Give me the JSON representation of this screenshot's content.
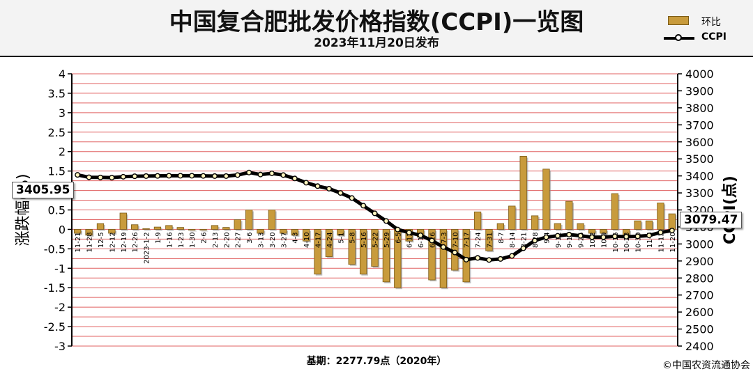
{
  "header": {
    "title": "中国复合肥批发价格指数(CCPI)一览图",
    "subtitle": "2023年11月20日发布"
  },
  "legend": {
    "bar_label": "环比",
    "line_label": "CCPI"
  },
  "footer": {
    "base_note": "基期：2277.79点（2020年）",
    "copyright": "©中国农资流通协会"
  },
  "value_boxes": {
    "left": "3405.95",
    "right": "3079.47"
  },
  "colors": {
    "bar": "#c89b3c",
    "bar_border": "#7a5a16",
    "grid": "#e06060",
    "line": "#000000"
  },
  "chart_data": {
    "type": "bar",
    "ylabel": "涨跌幅(%)",
    "y2label": "CCPI(点)",
    "ylim": [
      -3,
      4
    ],
    "y2lim": [
      2400,
      4000
    ],
    "yticks": [
      "4",
      "3.5",
      "3",
      "2.5",
      "2",
      "1.5",
      "1",
      "0.5",
      "0",
      "-0.5",
      "-1",
      "-1.5",
      "-2",
      "-2.5",
      "-3"
    ],
    "y2ticks": [
      "4000",
      "3900",
      "3800",
      "3700",
      "3600",
      "3500",
      "3400",
      "3300",
      "3200",
      "3100",
      "3000",
      "2900",
      "2800",
      "2700",
      "2600",
      "2500",
      "2400"
    ],
    "categories": [
      "11-21",
      "11-28",
      "12-5",
      "12-12",
      "12-19",
      "12-26",
      "2023-1-2",
      "1-9",
      "1-16",
      "1-23",
      "1-30",
      "2-6",
      "2-13",
      "2-20",
      "2-27",
      "3-6",
      "3-13",
      "3-20",
      "3-27",
      "4-3",
      "4-10",
      "4-17",
      "4-24",
      "5-1",
      "5-8",
      "5-16",
      "5-22",
      "5-29",
      "6-5",
      "6-12",
      "6-19",
      "6-26",
      "7-3",
      "7-10",
      "7-17",
      "7-24",
      "7-31",
      "8-7",
      "8-14",
      "8-21",
      "8-28",
      "9-4",
      "9-11",
      "9-18",
      "9-25",
      "10-2",
      "10-9",
      "10-16",
      "10-23",
      "10-30",
      "11-6",
      "11-13",
      "11-20"
    ],
    "series": [
      {
        "name": "环比",
        "values": [
          -0.1,
          -0.15,
          0.15,
          -0.1,
          0.42,
          0.12,
          0.02,
          0.06,
          0.1,
          0.05,
          0.0,
          0.0,
          0.1,
          0.05,
          0.25,
          0.5,
          -0.1,
          0.5,
          -0.1,
          -0.15,
          -0.3,
          -1.15,
          -0.7,
          -0.15,
          -0.9,
          -1.15,
          -0.95,
          -1.35,
          -1.5,
          -0.3,
          -0.2,
          -1.3,
          -1.5,
          -1.05,
          -1.35,
          0.45,
          -0.55,
          0.15,
          0.6,
          1.88,
          0.35,
          1.55,
          0.15,
          0.72,
          0.15,
          -0.1,
          -0.1,
          0.92,
          -0.15,
          0.22,
          0.22,
          0.68,
          0.4
        ]
      },
      {
        "name": "CCPI",
        "values": [
          3406,
          3392,
          3391,
          3390,
          3395,
          3398,
          3399,
          3400,
          3401,
          3401,
          3401,
          3400,
          3399,
          3399,
          3405,
          3420,
          3408,
          3415,
          3405,
          3385,
          3360,
          3340,
          3325,
          3300,
          3270,
          3225,
          3180,
          3135,
          3085,
          3067,
          3051,
          3020,
          2982,
          2950,
          2908,
          2918,
          2906,
          2912,
          2930,
          2975,
          3020,
          3040,
          3048,
          3055,
          3048,
          3040,
          3040,
          3045,
          3043,
          3045,
          3050,
          3068,
          3079
        ]
      }
    ],
    "grid": true,
    "legend_position": "top-right"
  }
}
